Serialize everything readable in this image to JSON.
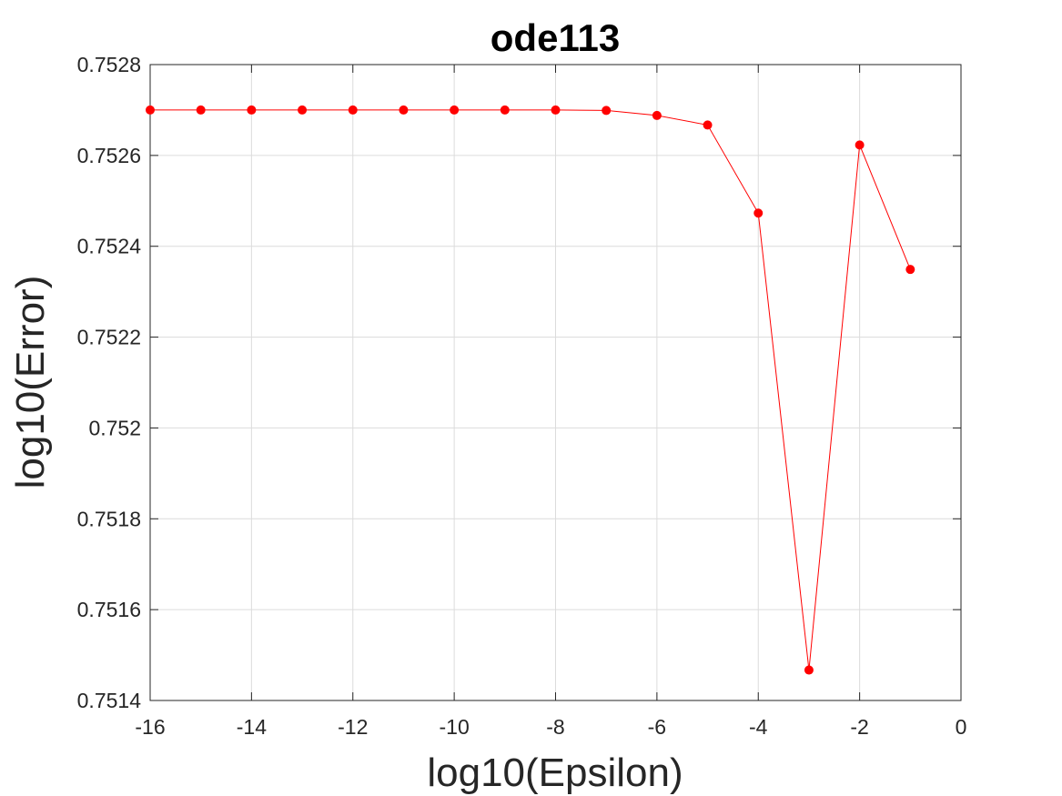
{
  "chart_data": {
    "type": "line",
    "title": "ode113",
    "xlabel": "log10(Epsilon)",
    "ylabel": "log10(Error)",
    "xlim": [
      -16,
      0
    ],
    "ylim": [
      0.7514,
      0.7528
    ],
    "xticks": [
      -16,
      -14,
      -12,
      -10,
      -8,
      -6,
      -4,
      -2,
      0
    ],
    "xtick_labels": [
      "-16",
      "-14",
      "-12",
      "-10",
      "-8",
      "-6",
      "-4",
      "-2",
      "0"
    ],
    "yticks": [
      0.7514,
      0.7516,
      0.7518,
      0.752,
      0.7522,
      0.7524,
      0.7526,
      0.7528
    ],
    "ytick_labels": [
      "0.7514",
      "0.7516",
      "0.7518",
      "0.752",
      "0.7522",
      "0.7524",
      "0.7526",
      "0.7528"
    ],
    "grid": true,
    "series": [
      {
        "color": "#ff0000",
        "marker": "circle",
        "x": [
          -16,
          -15,
          -14,
          -13,
          -12,
          -11,
          -10,
          -9,
          -8,
          -7,
          -6,
          -5,
          -4,
          -3,
          -2,
          -1
        ],
        "y": [
          0.7527,
          0.7527,
          0.7527,
          0.7527,
          0.7527,
          0.7527,
          0.7527,
          0.7527,
          0.7527,
          0.752699,
          0.752688,
          0.752667,
          0.752473,
          0.751467,
          0.752623,
          0.752349
        ]
      }
    ]
  }
}
